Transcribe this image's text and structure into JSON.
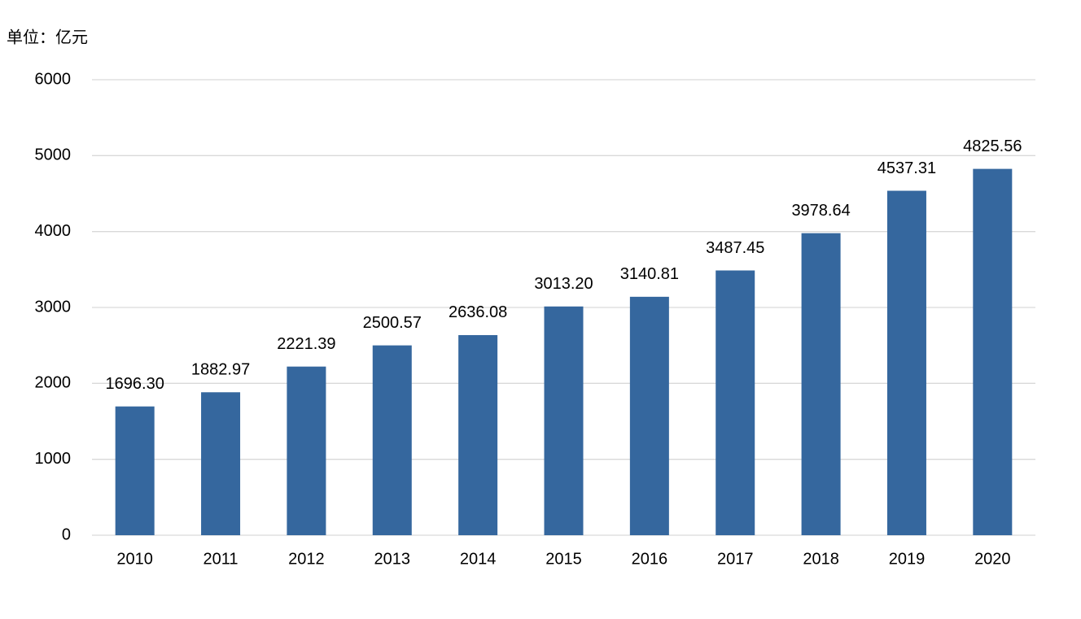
{
  "chart_data": {
    "type": "bar",
    "unit_label": "单位：亿元",
    "categories": [
      "2010",
      "2011",
      "2012",
      "2013",
      "2014",
      "2015",
      "2016",
      "2017",
      "2018",
      "2019",
      "2020"
    ],
    "values": [
      1696.3,
      1882.97,
      2221.39,
      2500.57,
      2636.08,
      3013.2,
      3140.81,
      3487.45,
      3978.64,
      4537.31,
      4825.56
    ],
    "value_labels": [
      "1696.30",
      "1882.97",
      "2221.39",
      "2500.57",
      "2636.08",
      "3013.20",
      "3140.81",
      "3487.45",
      "3978.64",
      "4537.31",
      "4825.56"
    ],
    "color": "#35679e",
    "ylim": [
      0,
      6000
    ],
    "yticks": [
      0,
      1000,
      2000,
      3000,
      4000,
      5000,
      6000
    ],
    "grid": true
  }
}
